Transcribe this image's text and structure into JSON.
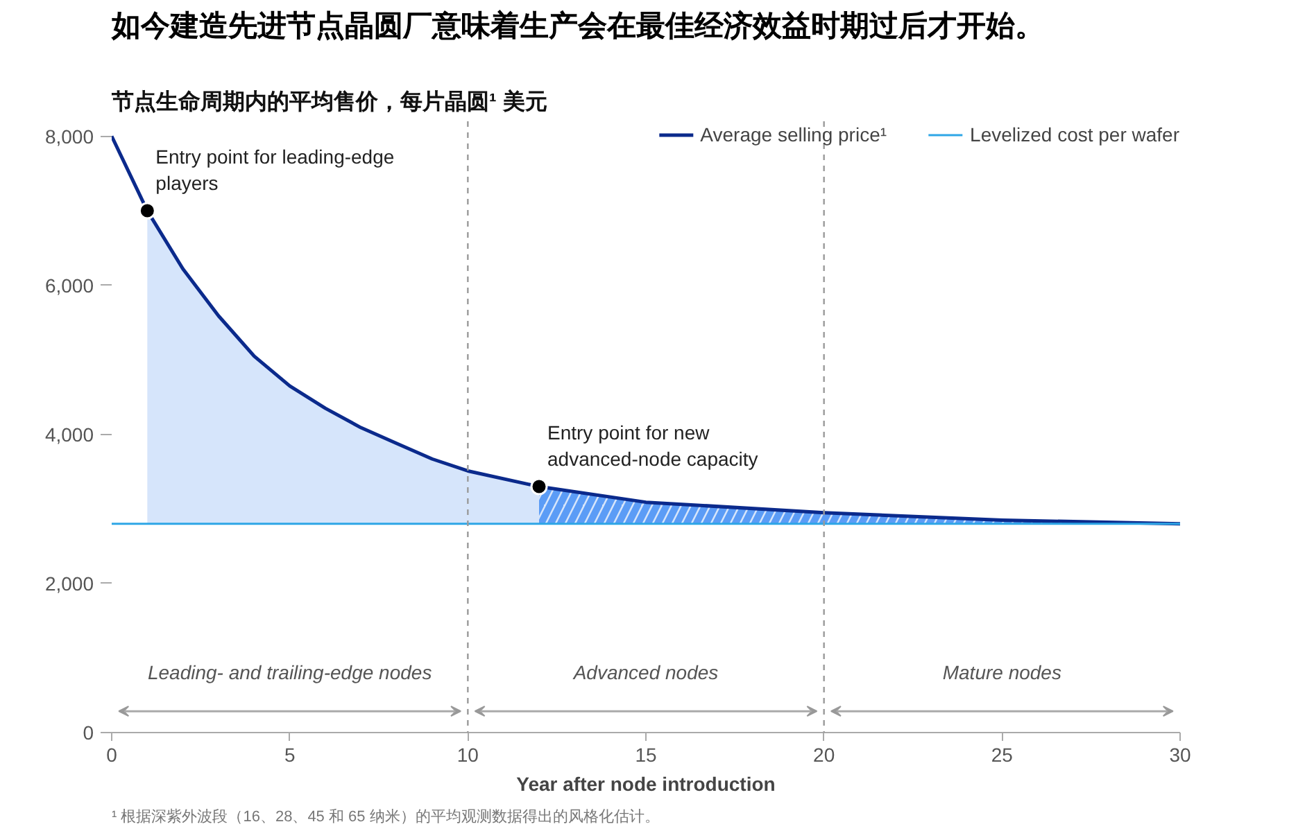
{
  "chart_data": {
    "type": "line",
    "title": "如今建造先进节点晶圆厂意味着生产会在最佳经济效益时期过后才开始。",
    "subtitle": "节点生命周期内的平均售价，每片晶圆¹ 美元",
    "xlabel": "Year after node introduction",
    "xlim": [
      0,
      30
    ],
    "xticks": [
      0,
      5,
      10,
      15,
      20,
      25,
      30
    ],
    "ylim": [
      0,
      8200
    ],
    "yticks": [
      {
        "value": 0,
        "label": "0"
      },
      {
        "value": 2000,
        "label": "2,000"
      },
      {
        "value": 4000,
        "label": "4,000"
      },
      {
        "value": 6000,
        "label": "6,000"
      },
      {
        "value": 8000,
        "label": "8,000"
      }
    ],
    "grid": false,
    "legend": "top right",
    "marker": "none",
    "line_style": "solid",
    "series": [
      {
        "name": "Average selling price¹",
        "color": "#0b2a8c",
        "x": [
          0,
          1,
          2,
          3,
          4,
          5,
          6,
          7,
          8,
          9,
          10,
          12,
          15,
          20,
          25,
          30
        ],
        "values": [
          8000,
          7000,
          6220,
          5590,
          5050,
          4650,
          4350,
          4090,
          3880,
          3670,
          3510,
          3300,
          3090,
          2950,
          2850,
          2800
        ],
        "lower": [
          null,
          2800,
          2800,
          2800,
          2800,
          2800,
          2800,
          2800,
          2800,
          2800,
          2800,
          2800,
          null,
          null,
          null,
          null
        ],
        "upper": [
          null,
          7000,
          6220,
          5590,
          5050,
          4650,
          4350,
          4090,
          3880,
          3670,
          3510,
          3300,
          null,
          null,
          null,
          null
        ]
      },
      {
        "name": "Levelized cost per wafer",
        "color": "#2ea6e6",
        "x": [
          0,
          12,
          15,
          20,
          25,
          30
        ],
        "values": [
          2800,
          2800,
          2800,
          2800,
          2800,
          2800
        ],
        "lower": [
          null,
          2800,
          2800,
          2800,
          2800,
          2800
        ],
        "upper": [
          null,
          3300,
          3090,
          2950,
          2850,
          2800
        ]
      },
      {
        "type": "scatter",
        "marker": "circle",
        "color": "#000000",
        "x": [
          1,
          12
        ],
        "values": [
          7000,
          3300
        ]
      }
    ],
    "ref_lines": [
      {
        "axis": "x",
        "value": 10,
        "color": "#9a9a9a",
        "line_style": "dashed"
      },
      {
        "axis": "x",
        "value": 20,
        "color": "#9a9a9a",
        "line_style": "dashed"
      }
    ],
    "annotations": [
      "Leading- and trailing-edge nodes",
      "Advanced nodes",
      "Mature nodes",
      {
        "text": "Entry point for leading-edge\nplayers",
        "x": 1,
        "y": 7000
      },
      {
        "text": "Entry point for new\nadvanced-node capacity",
        "x": 12,
        "y": 3300
      },
      "¹ 根据深紫外波段（16、28、45 和 65 纳米）的平均观测数据得出的风格化估计。"
    ]
  }
}
